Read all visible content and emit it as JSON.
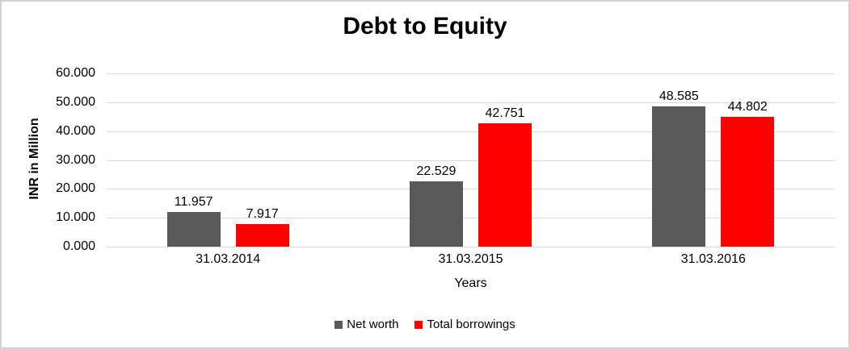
{
  "chart_data": {
    "type": "bar",
    "title": "Debt to Equity",
    "categories": [
      "31.03.2014",
      "31.03.2015",
      "31.03.2016"
    ],
    "series": [
      {
        "name": "Net worth",
        "color": "#595959",
        "values": [
          11.957,
          22.529,
          48.585
        ],
        "labels": [
          "11.957",
          "22.529",
          "48.585"
        ]
      },
      {
        "name": "Total borrowings",
        "color": "#FF0000",
        "values": [
          7.917,
          42.751,
          44.802
        ],
        "labels": [
          "7.917",
          "42.751",
          "44.802"
        ]
      }
    ],
    "xlabel": "Years",
    "ylabel": "INR in Million",
    "ylim": [
      0,
      60
    ],
    "ytick_step": 10,
    "ytick_labels": [
      "0.000",
      "10.000",
      "20.000",
      "30.000",
      "40.000",
      "50.000",
      "60.000"
    ],
    "grid": true,
    "grid_color": "#D9D9D9",
    "legend_position": "bottom"
  }
}
